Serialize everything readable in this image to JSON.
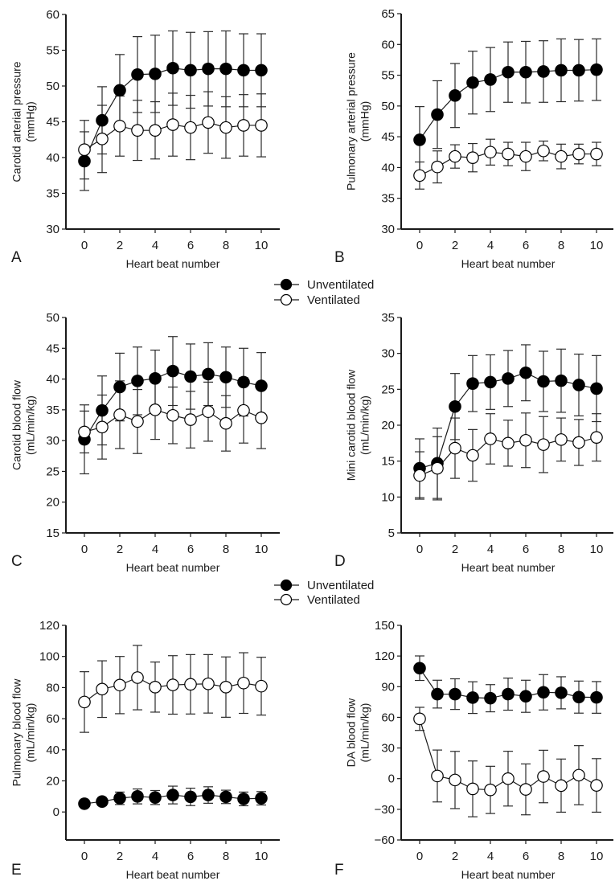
{
  "legend": {
    "series": [
      {
        "name": "Unventilated",
        "marker": "filled-circle",
        "color": "#000000"
      },
      {
        "name": "Ventilated",
        "marker": "open-circle",
        "color": "#ffffff"
      }
    ]
  },
  "chart_data": [
    {
      "panel": "A",
      "type": "line",
      "ylabel": [
        "Carotid arterial pressure",
        "(mmHg)"
      ],
      "xlabel": "Heart beat number",
      "ylim": [
        30,
        60
      ],
      "yticks": [
        30,
        35,
        40,
        45,
        50,
        55,
        60
      ],
      "xticks": [
        0,
        2,
        4,
        6,
        8,
        10
      ],
      "x": [
        0,
        1,
        2,
        3,
        4,
        5,
        6,
        7,
        8,
        9,
        10
      ],
      "series": [
        {
          "name": "Unventilated",
          "values": [
            39.5,
            45.2,
            49.4,
            51.6,
            51.7,
            52.5,
            52.2,
            52.4,
            52.4,
            52.2,
            52.2
          ],
          "error": [
            4.1,
            4.7,
            5.0,
            5.3,
            5.4,
            5.2,
            5.3,
            5.2,
            5.3,
            5.1,
            5.1
          ]
        },
        {
          "name": "Ventilated",
          "values": [
            41.1,
            42.6,
            44.4,
            43.8,
            43.8,
            44.6,
            44.2,
            44.9,
            44.2,
            44.5,
            44.5
          ],
          "error": [
            4.1,
            4.7,
            4.2,
            4.2,
            4.0,
            4.4,
            4.5,
            4.3,
            4.3,
            4.3,
            4.4
          ]
        }
      ]
    },
    {
      "panel": "B",
      "type": "line",
      "ylabel": [
        "Pulmonary arterial pressure",
        "(mmHg)"
      ],
      "xlabel": "Heart beat number",
      "ylim": [
        30,
        65
      ],
      "yticks": [
        30,
        35,
        40,
        45,
        50,
        55,
        60,
        65
      ],
      "xticks": [
        0,
        2,
        4,
        6,
        8,
        10
      ],
      "x": [
        0,
        1,
        2,
        3,
        4,
        5,
        6,
        7,
        8,
        9,
        10
      ],
      "series": [
        {
          "name": "Unventilated",
          "values": [
            44.5,
            48.6,
            51.7,
            53.8,
            54.3,
            55.5,
            55.5,
            55.6,
            55.8,
            55.8,
            55.9
          ],
          "error": [
            5.4,
            5.5,
            5.2,
            5.1,
            5.2,
            4.9,
            5.0,
            5.0,
            5.1,
            5.0,
            5.0
          ]
        },
        {
          "name": "Ventilated",
          "values": [
            38.7,
            40.1,
            41.8,
            41.6,
            42.5,
            42.2,
            41.8,
            42.7,
            41.8,
            42.2,
            42.2
          ],
          "error": [
            2.2,
            2.6,
            1.9,
            2.3,
            2.1,
            1.9,
            2.3,
            1.6,
            2.0,
            1.6,
            1.9
          ]
        }
      ]
    },
    {
      "panel": "C",
      "type": "line",
      "ylabel": [
        "Carotid blood flow",
        "(mL/min/kg)"
      ],
      "xlabel": "Heart beat number",
      "ylim": [
        15,
        50
      ],
      "yticks": [
        15,
        20,
        25,
        30,
        35,
        40,
        45,
        50
      ],
      "xticks": [
        0,
        2,
        4,
        6,
        8,
        10
      ],
      "x": [
        0,
        1,
        2,
        3,
        4,
        5,
        6,
        7,
        8,
        9,
        10
      ],
      "series": [
        {
          "name": "Unventilated",
          "values": [
            30.2,
            34.9,
            38.7,
            39.7,
            40.1,
            41.3,
            40.4,
            40.8,
            40.3,
            39.5,
            38.9
          ],
          "error": [
            5.6,
            5.6,
            5.5,
            5.5,
            4.6,
            5.6,
            5.3,
            5.1,
            4.9,
            5.5,
            5.4
          ]
        },
        {
          "name": "Ventilated",
          "values": [
            31.4,
            32.2,
            34.2,
            33.1,
            35.0,
            34.1,
            33.4,
            34.7,
            32.8,
            34.9,
            33.7
          ],
          "error": [
            3.4,
            5.2,
            5.5,
            5.2,
            4.8,
            4.6,
            4.6,
            4.8,
            4.5,
            5.3,
            5.0
          ]
        }
      ]
    },
    {
      "panel": "D",
      "type": "line",
      "ylabel": [
        "Mini carotid blood flow",
        "(mL/min/kg)"
      ],
      "xlabel": "Heart beat number",
      "ylim": [
        5,
        35
      ],
      "yticks": [
        5,
        10,
        15,
        20,
        25,
        30,
        35
      ],
      "xticks": [
        0,
        2,
        4,
        6,
        8,
        10
      ],
      "x": [
        0,
        1,
        2,
        3,
        4,
        5,
        6,
        7,
        8,
        9,
        10
      ],
      "series": [
        {
          "name": "Unventilated",
          "values": [
            14.0,
            14.7,
            22.6,
            25.8,
            26.0,
            26.5,
            27.3,
            26.1,
            26.2,
            25.6,
            25.1
          ],
          "error": [
            4.1,
            4.9,
            4.6,
            3.9,
            3.8,
            3.9,
            3.9,
            4.2,
            4.4,
            4.3,
            4.6
          ]
        },
        {
          "name": "Ventilated",
          "values": [
            13.0,
            14.0,
            16.8,
            15.8,
            18.1,
            17.5,
            17.9,
            17.3,
            18.0,
            17.6,
            18.3
          ],
          "error": [
            3.3,
            4.4,
            4.2,
            3.6,
            3.5,
            3.2,
            3.8,
            3.9,
            3.0,
            3.2,
            3.3
          ]
        }
      ]
    },
    {
      "panel": "E",
      "type": "line",
      "ylabel": [
        "Pulmonary blood flow",
        "(mL/min/kg)"
      ],
      "xlabel": "Heart beat number",
      "ylim": [
        -18,
        120
      ],
      "yticks": [
        0,
        20,
        40,
        60,
        80,
        100,
        120
      ],
      "xticks": [
        0,
        2,
        4,
        6,
        8,
        10
      ],
      "x": [
        0,
        1,
        2,
        3,
        4,
        5,
        6,
        7,
        8,
        9,
        10
      ],
      "series": [
        {
          "name": "Unventilated",
          "values": [
            5.3,
            6.7,
            8.8,
            10.0,
            9.3,
            10.9,
            9.7,
            10.9,
            9.7,
            8.4,
            8.8
          ],
          "error": [
            2.0,
            2.5,
            4.0,
            4.8,
            4.5,
            5.7,
            5.6,
            5.3,
            4.3,
            4.4,
            4.3
          ]
        },
        {
          "name": "Ventilated",
          "values": [
            70.7,
            79.0,
            81.6,
            86.4,
            80.3,
            81.7,
            82.1,
            82.4,
            80.3,
            82.9,
            80.9
          ],
          "error": [
            19.5,
            18.2,
            18.4,
            20.7,
            16.1,
            18.8,
            19.1,
            18.8,
            19.4,
            19.5,
            18.6
          ]
        }
      ]
    },
    {
      "panel": "F",
      "type": "line",
      "ylabel": [
        "DA blood flow",
        "(mL/min/kg)"
      ],
      "xlabel": "Heart beat number",
      "ylim": [
        -60,
        150
      ],
      "yticks": [
        -60,
        -30,
        0,
        30,
        60,
        90,
        120,
        150
      ],
      "xticks": [
        0,
        2,
        4,
        6,
        8,
        10
      ],
      "x": [
        0,
        1,
        2,
        3,
        4,
        5,
        6,
        7,
        8,
        9,
        10
      ],
      "series": [
        {
          "name": "Unventilated",
          "values": [
            108.1,
            82.7,
            82.7,
            79.3,
            78.7,
            82.7,
            80.6,
            84.5,
            84.0,
            79.8,
            79.5
          ],
          "error": [
            12.0,
            13.6,
            15.0,
            15.5,
            13.3,
            15.7,
            15.7,
            17.3,
            15.7,
            15.7,
            15.5
          ]
        },
        {
          "name": "Ventilated",
          "values": [
            58.5,
            2.6,
            -1.3,
            -10.0,
            -11.0,
            0.0,
            -10.5,
            2.1,
            -6.8,
            3.4,
            -6.6
          ],
          "error": [
            11.3,
            25.4,
            28.0,
            27.3,
            23.1,
            26.8,
            24.9,
            25.7,
            26.0,
            28.9,
            26.2
          ]
        }
      ]
    }
  ]
}
